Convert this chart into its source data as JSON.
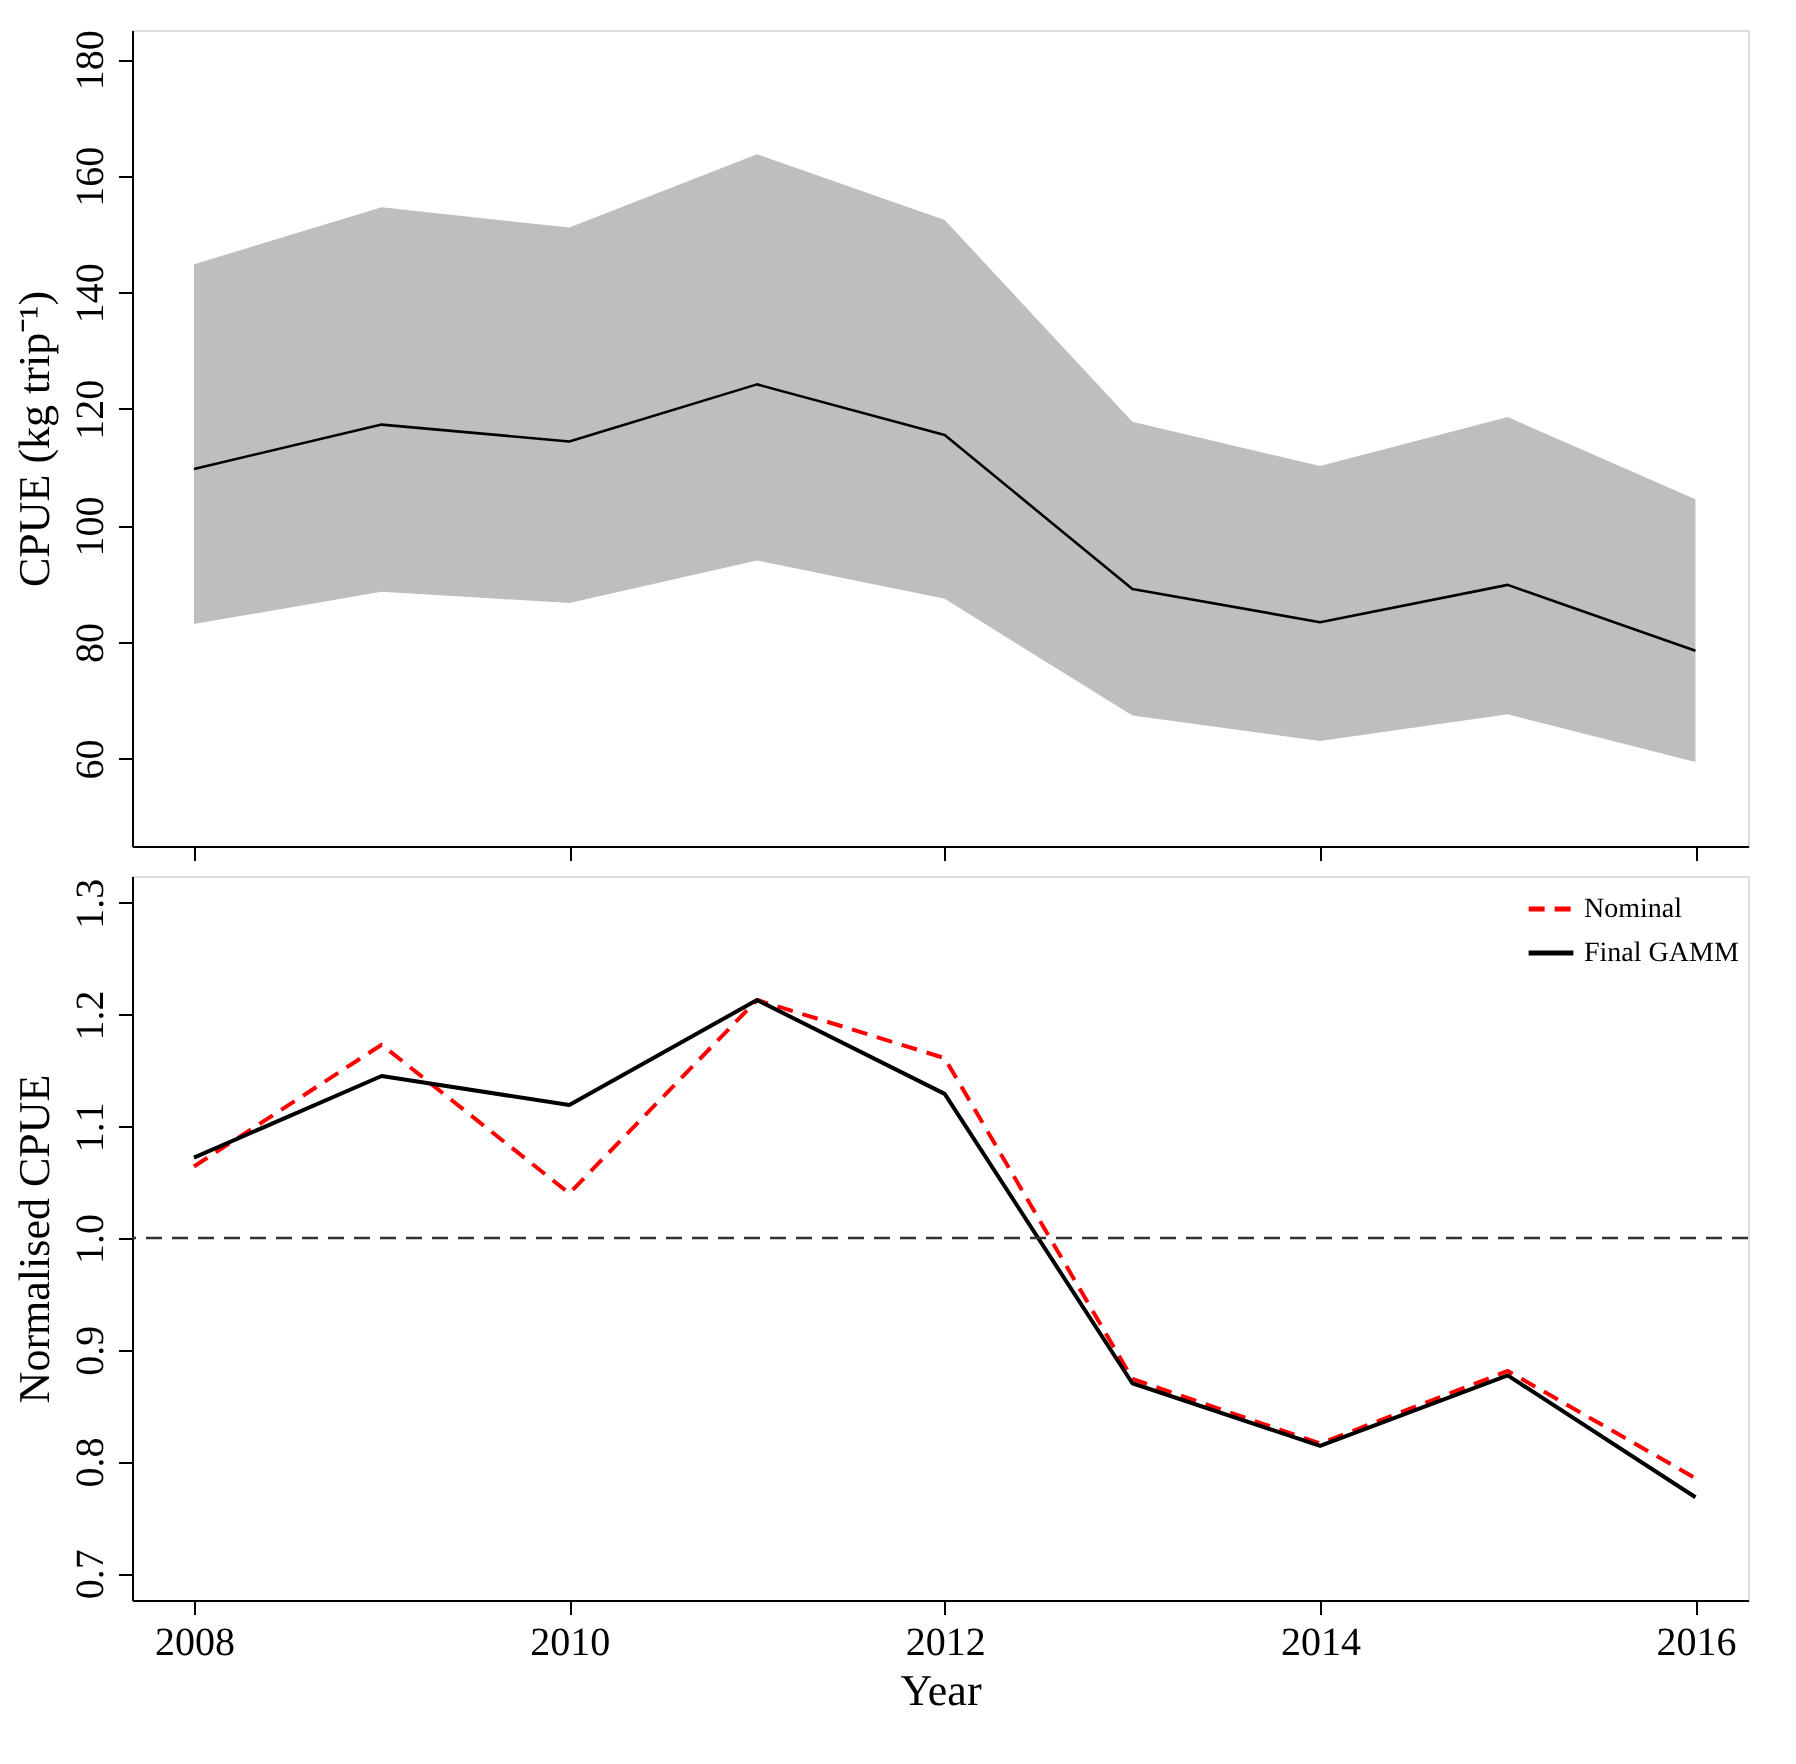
{
  "chart_data": [
    {
      "type": "line",
      "ylabel": "CPUE (kg trip⁻¹)",
      "x": [
        2008,
        2009,
        2010,
        2011,
        2012,
        2013,
        2014,
        2015,
        2016
      ],
      "xlim": [
        2007.67,
        2016.28
      ],
      "xticks": [
        2008,
        2010,
        2012,
        2014,
        2016
      ],
      "ylim": [
        45,
        185
      ],
      "yticks": [
        60,
        80,
        100,
        120,
        140,
        160,
        180
      ],
      "tick_labels": "y",
      "grid": false,
      "legend": false,
      "series": [
        {
          "color": "#000000",
          "values": [
            109.7,
            117.3,
            114.4,
            124.2,
            115.5,
            89.1,
            83.4,
            89.8,
            78.5
          ],
          "lower": [
            83.1,
            88.6,
            86.7,
            94.0,
            87.4,
            67.4,
            63.0,
            67.6,
            59.4
          ],
          "upper": [
            144.8,
            154.6,
            151.1,
            163.7,
            152.4,
            117.8,
            110.2,
            118.6,
            104.5
          ]
        }
      ]
    },
    {
      "type": "line",
      "xlabel": "Year",
      "ylabel": "Normalised CPUE",
      "x": [
        2008,
        2009,
        2010,
        2011,
        2012,
        2013,
        2014,
        2015,
        2016
      ],
      "xlim": [
        2007.67,
        2016.28
      ],
      "xticks": [
        2008,
        2010,
        2012,
        2014,
        2016
      ],
      "ylim": [
        0.676,
        1.324
      ],
      "yticks": [
        {
          "value": 0.7,
          "label": "0.7"
        },
        {
          "value": 0.8,
          "label": "0.8"
        },
        {
          "value": 0.9,
          "label": "0.9"
        },
        {
          "value": 1.0,
          "label": "1.0"
        },
        {
          "value": 1.1,
          "label": "1.1"
        },
        {
          "value": 1.2,
          "label": "1.2"
        },
        {
          "value": 1.3,
          "label": "1.3"
        }
      ],
      "grid": false,
      "legend": "top right",
      "ref_lines": [
        {
          "axis": "y",
          "value": 1.0,
          "color": "#333333",
          "line_style": "dashed"
        }
      ],
      "series": [
        {
          "name": "Nominal",
          "color": "#ff0000",
          "line_style": "dashed",
          "values": [
            1.064,
            1.173,
            1.04,
            1.213,
            1.161,
            0.874,
            0.816,
            0.881,
            0.785
          ]
        },
        {
          "name": "Final GAMM",
          "color": "#000000",
          "line_style": "solid",
          "values": [
            1.072,
            1.145,
            1.119,
            1.213,
            1.129,
            0.87,
            0.814,
            0.877,
            0.768
          ]
        }
      ]
    }
  ]
}
